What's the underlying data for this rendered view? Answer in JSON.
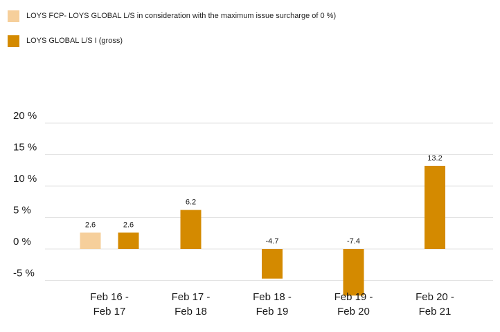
{
  "legend": [
    {
      "label": "LOYS FCP- LOYS GLOBAL L/S in consideration with the maximum issue surcharge of 0 %)",
      "color": "#f6cf9b"
    },
    {
      "label": "LOYS GLOBAL L/S I (gross)",
      "color": "#d48a00"
    }
  ],
  "chart_data": {
    "type": "bar",
    "categories": [
      [
        "Feb 16 -",
        "Feb 17"
      ],
      [
        "Feb 17 -",
        "Feb 18"
      ],
      [
        "Feb 18 -",
        "Feb 19"
      ],
      [
        "Feb 19 -",
        "Feb 20"
      ],
      [
        "Feb 20 -",
        "Feb 21"
      ]
    ],
    "series": [
      {
        "name": "LOYS FCP- LOYS GLOBAL L/S in consideration with the maximum issue surcharge of 0 %)",
        "color": "#f6cf9b",
        "values": [
          2.6,
          null,
          null,
          null,
          null
        ],
        "labels": [
          "2.6",
          null,
          null,
          null,
          null
        ]
      },
      {
        "name": "LOYS GLOBAL L/S I (gross)",
        "color": "#d48a00",
        "values": [
          2.6,
          6.2,
          -4.7,
          -7.4,
          13.2
        ],
        "labels": [
          "2.6",
          "6.2",
          "-4.7",
          "-7.4",
          "13.2"
        ]
      }
    ],
    "yticks": [
      -5,
      0,
      5,
      10,
      15,
      20
    ],
    "ytick_labels": [
      "-5 %",
      "0 %",
      "5 %",
      "10 %",
      "15 %",
      "20 %"
    ],
    "ylim": [
      -8,
      20
    ],
    "grid": true,
    "legend_position": "top-left"
  }
}
